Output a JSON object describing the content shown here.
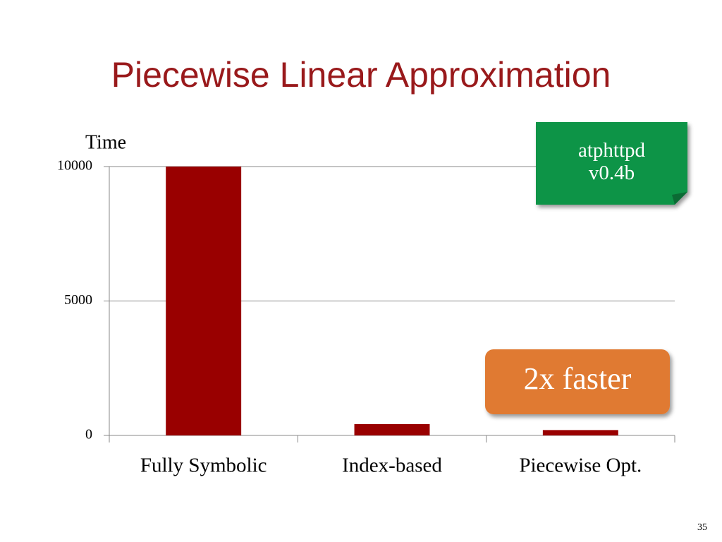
{
  "chart_data": {
    "type": "bar",
    "title": "Piecewise Linear Approximation",
    "y_label": "Time",
    "categories": [
      "Fully Symbolic",
      "Index-based",
      "Piecewise Opt."
    ],
    "values": [
      10000,
      420,
      200
    ],
    "color": "#990000",
    "ylim": [
      0,
      10000
    ],
    "yticks": [
      0,
      5000,
      10000
    ],
    "grid": true,
    "annotations": [
      {
        "lines": [
          "atphttpd",
          "v0.4b"
        ],
        "color": "#0a9447"
      },
      {
        "lines": [
          "2x faster"
        ],
        "color": "#e07a32"
      }
    ]
  },
  "slide_number": "35"
}
